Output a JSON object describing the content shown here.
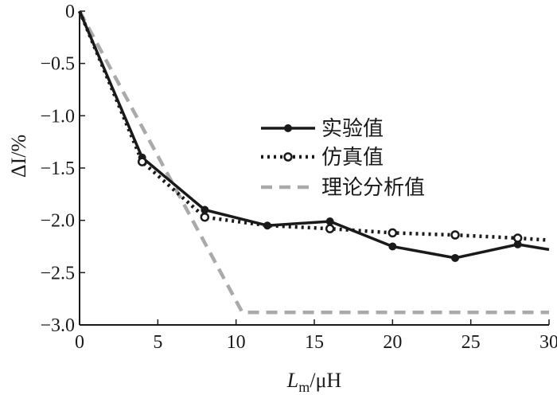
{
  "chart_data": {
    "type": "line",
    "xlabel_main": "L",
    "xlabel_sub": "m",
    "xlabel_unit": "/μH",
    "ylabel": "ΔI/%",
    "xlim": [
      0,
      30
    ],
    "ylim": [
      -3.0,
      0
    ],
    "x_ticks": [
      0,
      5,
      10,
      15,
      20,
      25,
      30
    ],
    "x_tick_labels": [
      "0",
      "5",
      "10",
      "15",
      "20",
      "25",
      "30"
    ],
    "y_ticks": [
      0,
      -0.5,
      -1.0,
      -1.5,
      -2.0,
      -2.5,
      -3.0
    ],
    "y_tick_labels": [
      "0",
      "−0.5",
      "−1.0",
      "−1.5",
      "−2.0",
      "−2.5",
      "−3.0"
    ],
    "grid": false,
    "legend_position": "upper-right",
    "series": [
      {
        "name": "实验值",
        "style": "solid",
        "marker": "filled-circle",
        "color": "#1a1a1a",
        "points": [
          [
            0,
            0
          ],
          [
            4,
            -1.4
          ],
          [
            8,
            -1.9
          ],
          [
            12,
            -2.05
          ],
          [
            16,
            -2.01
          ],
          [
            20,
            -2.25
          ],
          [
            24,
            -2.36
          ],
          [
            28,
            -2.23
          ],
          [
            30,
            -2.28
          ]
        ],
        "marker_x": [
          4,
          8,
          12,
          16,
          20,
          24,
          28
        ]
      },
      {
        "name": "仿真值",
        "style": "dotted",
        "marker": "open-circle",
        "color": "#1a1a1a",
        "points": [
          [
            0,
            0
          ],
          [
            4,
            -1.44
          ],
          [
            8,
            -1.97
          ],
          [
            12,
            -2.05
          ],
          [
            16,
            -2.08
          ],
          [
            20,
            -2.12
          ],
          [
            24,
            -2.14
          ],
          [
            28,
            -2.17
          ],
          [
            30,
            -2.19
          ]
        ],
        "marker_x": [
          4,
          8,
          16,
          20,
          24,
          28
        ]
      },
      {
        "name": "理论分析值",
        "style": "dashed",
        "marker": "none",
        "color": "#aaaaaa",
        "points": [
          [
            0,
            0
          ],
          [
            10.4,
            -2.88
          ],
          [
            30,
            -2.88
          ]
        ],
        "marker_x": []
      }
    ]
  }
}
